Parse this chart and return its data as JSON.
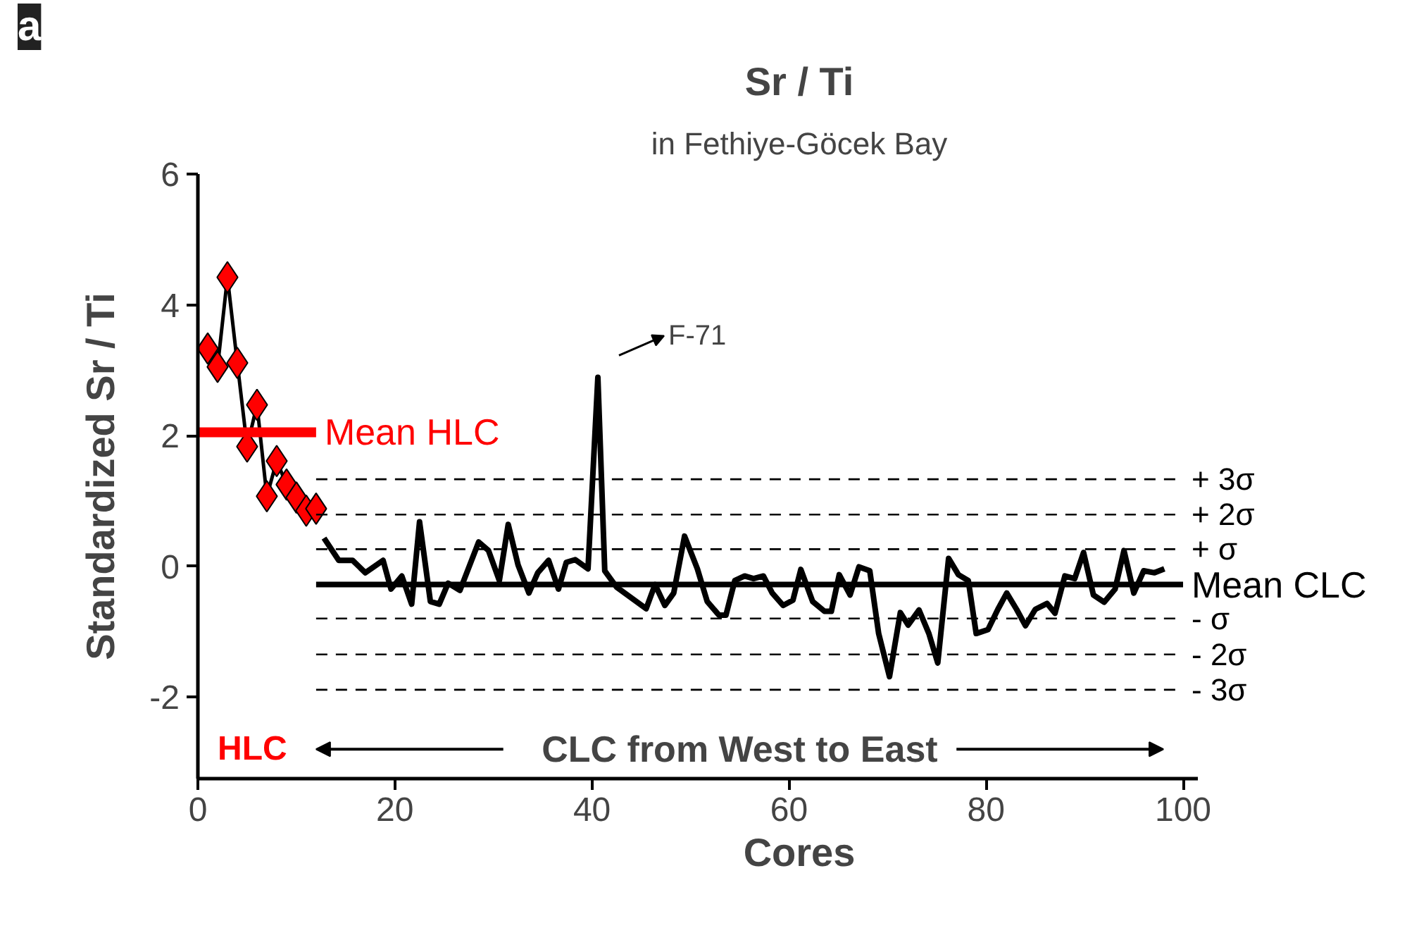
{
  "chart_data": {
    "type": "line",
    "title": "Sr / Ti",
    "subtitle": "in Fethiye-Göcek Bay",
    "xlabel": "Cores",
    "ylabel": "Standardized Sr / Ti",
    "xlim": [
      0,
      101.5
    ],
    "ylim": [
      -3.25,
      6
    ],
    "xticks": [
      0,
      20,
      40,
      60,
      80,
      100
    ],
    "yticks": [
      -2,
      0,
      2,
      4,
      6
    ],
    "grid": false,
    "series": [
      {
        "marker": "diamond",
        "color": "#ff0000",
        "x": [
          1,
          2,
          3,
          4,
          5,
          6,
          7,
          8,
          9,
          10,
          11,
          12
        ],
        "values": [
          3.33,
          3.05,
          4.42,
          3.11,
          1.83,
          2.47,
          1.07,
          1.61,
          1.25,
          1.05,
          0.85,
          0.88
        ]
      },
      {
        "marker": "none",
        "color": "#000000",
        "x": [
          12.8,
          14.3,
          15.7,
          17,
          18.8,
          19.6,
          20.7,
          21.7,
          22.5,
          23.6,
          24.5,
          25.4,
          26.6,
          28.5,
          29.5,
          30.6,
          31.5,
          32.5,
          33.6,
          34.5,
          35.6,
          36.6,
          37.4,
          38.3,
          39.6,
          40.6,
          41.3,
          42.5,
          45.5,
          46.4,
          47.4,
          48.3,
          49.4,
          50.7,
          51.7,
          52.9,
          53.6,
          54.5,
          55.5,
          56.4,
          57.4,
          58.3,
          59.4,
          60.4,
          61.2,
          62.4,
          63.6,
          64.3,
          65.1,
          66.2,
          67.1,
          68.2,
          69.1,
          70.2,
          71.3,
          72.1,
          73.2,
          74.2,
          75.1,
          76.2,
          77.2,
          78.2,
          79,
          80.2,
          81.2,
          82.1,
          83.1,
          84,
          85,
          86.2,
          87,
          88,
          89,
          89.9,
          90.9,
          92,
          93.1,
          94,
          95,
          96,
          97.1,
          98.1
        ],
        "values": [
          0.43,
          0.09,
          0.09,
          -0.1,
          0.09,
          -0.35,
          -0.15,
          -0.58,
          0.68,
          -0.54,
          -0.58,
          -0.26,
          -0.37,
          0.37,
          0.24,
          -0.22,
          0.64,
          0.02,
          -0.41,
          -0.1,
          0.09,
          -0.35,
          0.06,
          0.1,
          -0.04,
          2.89,
          -0.07,
          -0.32,
          -0.65,
          -0.28,
          -0.6,
          -0.41,
          0.46,
          -0.04,
          -0.54,
          -0.75,
          -0.75,
          -0.22,
          -0.15,
          -0.19,
          -0.15,
          -0.41,
          -0.6,
          -0.52,
          -0.05,
          -0.54,
          -0.69,
          -0.69,
          -0.13,
          -0.44,
          -0.01,
          -0.07,
          -1.03,
          -1.69,
          -0.71,
          -0.9,
          -0.67,
          -1.03,
          -1.48,
          0.12,
          -0.13,
          -0.22,
          -1.03,
          -0.97,
          -0.66,
          -0.41,
          -0.66,
          -0.91,
          -0.66,
          -0.57,
          -0.72,
          -0.15,
          -0.19,
          0.21,
          -0.44,
          -0.55,
          -0.35,
          0.24,
          -0.41,
          -0.07,
          -0.1,
          -0.04
        ]
      }
    ],
    "ref_lines": [
      {
        "axis": "y",
        "value": 2.05,
        "label": "Mean HLC",
        "color": "#ff0000",
        "line_style": "solid"
      },
      {
        "axis": "y",
        "value": -0.28,
        "label": "Mean CLC",
        "color": "#000000",
        "line_style": "solid"
      },
      {
        "axis": "y",
        "value": 1.33,
        "label": "+ 3σ",
        "color": "#000000",
        "line_style": "dashed"
      },
      {
        "axis": "y",
        "value": 0.79,
        "label": "+ 2σ",
        "color": "#000000",
        "line_style": "dashed"
      },
      {
        "axis": "y",
        "value": 0.26,
        "label": "+ σ",
        "color": "#000000",
        "line_style": "dashed"
      },
      {
        "axis": "y",
        "value": -0.8,
        "label": "- σ",
        "color": "#000000",
        "line_style": "dashed"
      },
      {
        "axis": "y",
        "value": -1.35,
        "label": "- 2σ",
        "color": "#000000",
        "line_style": "dashed"
      },
      {
        "axis": "y",
        "value": -1.89,
        "label": "- 3σ",
        "color": "#000000",
        "line_style": "dashed"
      }
    ],
    "annotations": [
      "a",
      "HLC",
      "CLC from West to East",
      {
        "text": "F-71",
        "x": 40.6,
        "y": 2.89
      }
    ]
  }
}
